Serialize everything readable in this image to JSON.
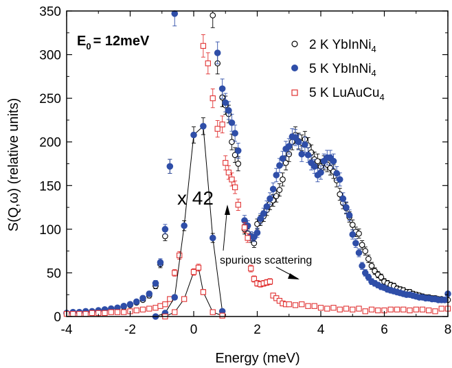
{
  "chart_data": {
    "type": "scatter",
    "xlabel": "Energy (meV)",
    "ylabel": "S(Q,ω) (relative units)",
    "xlim": [
      -4,
      8
    ],
    "ylim": [
      0,
      350
    ],
    "xticks": [
      -4,
      -2,
      0,
      2,
      4,
      6,
      8
    ],
    "yticks": [
      0,
      50,
      100,
      150,
      200,
      250,
      300,
      350
    ],
    "legend_position": "top-right",
    "grid": false,
    "incident_energy": {
      "label": "E",
      "subscript": "0",
      "value": "= 12meV"
    },
    "annotations": {
      "scale_factor": "x 42",
      "spurious": "spurious scattering"
    },
    "colors": {
      "open_black": "#000000",
      "blue": "#2f4ea8",
      "red": "#e03030"
    },
    "series": [
      {
        "name": "2 K YbInNi",
        "name_sub": "4",
        "marker": "open-circle",
        "x": [
          -4.0,
          -3.8,
          -3.6,
          -3.4,
          -3.2,
          -3.0,
          -2.8,
          -2.6,
          -2.4,
          -2.2,
          -2.0,
          -1.8,
          -1.6,
          -1.4,
          -1.2,
          -1.05,
          -0.9,
          -0.75,
          0.6,
          0.75,
          0.9,
          1.0,
          1.1,
          1.2,
          1.3,
          1.4,
          1.6,
          1.7,
          1.8,
          1.9,
          2.0,
          2.1,
          2.2,
          2.3,
          2.4,
          2.5,
          2.6,
          2.7,
          2.8,
          2.9,
          3.0,
          3.1,
          3.2,
          3.3,
          3.4,
          3.5,
          3.6,
          3.7,
          3.8,
          3.9,
          4.0,
          4.1,
          4.2,
          4.3,
          4.4,
          4.5,
          4.6,
          4.7,
          4.8,
          4.9,
          5.0,
          5.1,
          5.2,
          5.3,
          5.4,
          5.5,
          5.6,
          5.7,
          5.8,
          5.9,
          6.0,
          6.1,
          6.2,
          6.3,
          6.4,
          6.5,
          6.6,
          6.7,
          6.8,
          6.9,
          7.0,
          7.1,
          7.2,
          7.3,
          7.4,
          7.5,
          7.6,
          7.7,
          7.8,
          7.9,
          8.0
        ],
        "y": [
          3,
          4,
          4,
          5,
          5,
          6,
          7,
          8,
          9,
          11,
          13,
          16,
          19,
          24,
          35,
          60,
          92,
          172,
          345,
          290,
          251,
          242,
          232,
          200,
          185,
          175,
          100,
          95,
          90,
          84,
          106,
          110,
          115,
          122,
          129,
          133,
          138,
          145,
          157,
          176,
          186,
          200,
          208,
          201,
          199,
          203,
          196,
          188,
          180,
          178,
          172,
          176,
          174,
          170,
          166,
          156,
          140,
          130,
          124,
          114,
          105,
          97,
          95,
          82,
          75,
          66,
          58,
          52,
          48,
          45,
          40,
          38,
          36,
          35,
          32,
          31,
          30,
          28,
          28,
          26,
          25,
          24,
          23,
          22,
          22,
          21,
          21,
          20,
          20,
          19,
          19
        ]
      },
      {
        "name": "5 K YbInNi",
        "name_sub": "4",
        "marker": "filled-circle",
        "x": [
          -4.0,
          -3.8,
          -3.6,
          -3.4,
          -3.2,
          -3.0,
          -2.8,
          -2.6,
          -2.4,
          -2.2,
          -2.0,
          -1.8,
          -1.6,
          -1.4,
          -1.2,
          -1.05,
          -0.9,
          -0.75,
          -0.6,
          0.75,
          0.9,
          1.0,
          1.1,
          1.2,
          1.3,
          1.4,
          1.6,
          1.7,
          1.8,
          1.9,
          2.0,
          2.1,
          2.2,
          2.3,
          2.4,
          2.5,
          2.6,
          2.7,
          2.8,
          2.9,
          3.0,
          3.1,
          3.2,
          3.3,
          3.4,
          3.5,
          3.6,
          3.7,
          3.8,
          3.9,
          4.0,
          4.1,
          4.2,
          4.3,
          4.4,
          4.5,
          4.6,
          4.7,
          4.8,
          4.9,
          5.0,
          5.1,
          5.2,
          5.3,
          5.4,
          5.5,
          5.6,
          5.7,
          5.8,
          5.9,
          6.0,
          6.1,
          6.2,
          6.3,
          6.4,
          6.5,
          6.6,
          6.7,
          6.8,
          6.9,
          7.0,
          7.1,
          7.2,
          7.3,
          7.4,
          7.5,
          7.6,
          7.7,
          7.8,
          7.9,
          8.0
        ],
        "y": [
          4,
          5,
          5,
          6,
          6,
          7,
          8,
          9,
          10,
          12,
          14,
          17,
          21,
          26,
          38,
          62,
          100,
          172,
          347,
          302,
          261,
          245,
          236,
          222,
          210,
          190,
          110,
          104,
          92,
          91,
          96,
          112,
          118,
          126,
          135,
          146,
          162,
          173,
          181,
          192,
          195,
          206,
          205,
          200,
          186,
          197,
          185,
          176,
          172,
          162,
          165,
          178,
          182,
          182,
          178,
          164,
          157,
          135,
          125,
          116,
          94,
          84,
          73,
          58,
          50,
          45,
          40,
          38,
          36,
          34,
          33,
          31,
          30,
          29,
          28,
          27,
          26,
          25,
          25,
          24,
          23,
          22,
          22,
          21,
          21,
          20,
          20,
          19,
          19,
          19,
          26
        ]
      },
      {
        "name": "5 K LuAuCu",
        "name_sub": "4",
        "marker": "open-square",
        "x": [
          -4.0,
          -3.8,
          -3.6,
          -3.4,
          -3.2,
          -3.0,
          -2.8,
          -2.6,
          -2.4,
          -2.2,
          -2.0,
          -1.8,
          -1.6,
          -1.4,
          -1.2,
          -1.05,
          -0.9,
          -0.75,
          -0.6,
          -0.45,
          0.3,
          0.45,
          0.6,
          0.75,
          0.9,
          1.0,
          1.1,
          1.2,
          1.3,
          1.4,
          1.6,
          1.7,
          1.8,
          1.9,
          2.0,
          2.1,
          2.2,
          2.3,
          2.4,
          2.5,
          2.6,
          2.7,
          2.8,
          2.9,
          3.0,
          3.2,
          3.4,
          3.6,
          3.8,
          4.0,
          4.2,
          4.4,
          4.6,
          4.8,
          5.0,
          5.2,
          5.4,
          5.6,
          5.8,
          6.0,
          6.2,
          6.4,
          6.6,
          6.8,
          7.0,
          7.2,
          7.4,
          7.6,
          7.8,
          8.0
        ],
        "y": [
          3,
          3,
          3,
          3,
          4,
          4,
          4,
          5,
          5,
          5,
          6,
          7,
          8,
          9,
          10,
          12,
          14,
          20,
          50,
          70,
          310,
          290,
          250,
          215,
          220,
          176,
          165,
          157,
          148,
          128,
          102,
          90,
          55,
          43,
          38,
          37,
          38,
          39,
          40,
          24,
          21,
          18,
          15,
          14,
          14,
          13,
          14,
          12,
          12,
          10,
          9,
          10,
          8,
          9,
          8,
          9,
          6,
          8,
          7,
          7,
          8,
          8,
          8,
          7,
          8,
          8,
          7,
          6,
          9,
          9
        ]
      },
      {
        "name": "",
        "marker": "filled-circle-line",
        "x": [
          -1.2,
          -0.9,
          -0.6,
          -0.3,
          0.0,
          0.3,
          0.6,
          0.9
        ],
        "y": [
          0,
          4,
          22,
          104,
          208,
          218,
          90,
          6
        ]
      },
      {
        "name": "",
        "marker": "open-square-line",
        "x": [
          -0.9,
          -0.6,
          -0.3,
          0.0,
          0.15,
          0.3,
          0.6,
          0.9
        ],
        "y": [
          0,
          5,
          20,
          51,
          56,
          28,
          5,
          1
        ]
      }
    ]
  }
}
